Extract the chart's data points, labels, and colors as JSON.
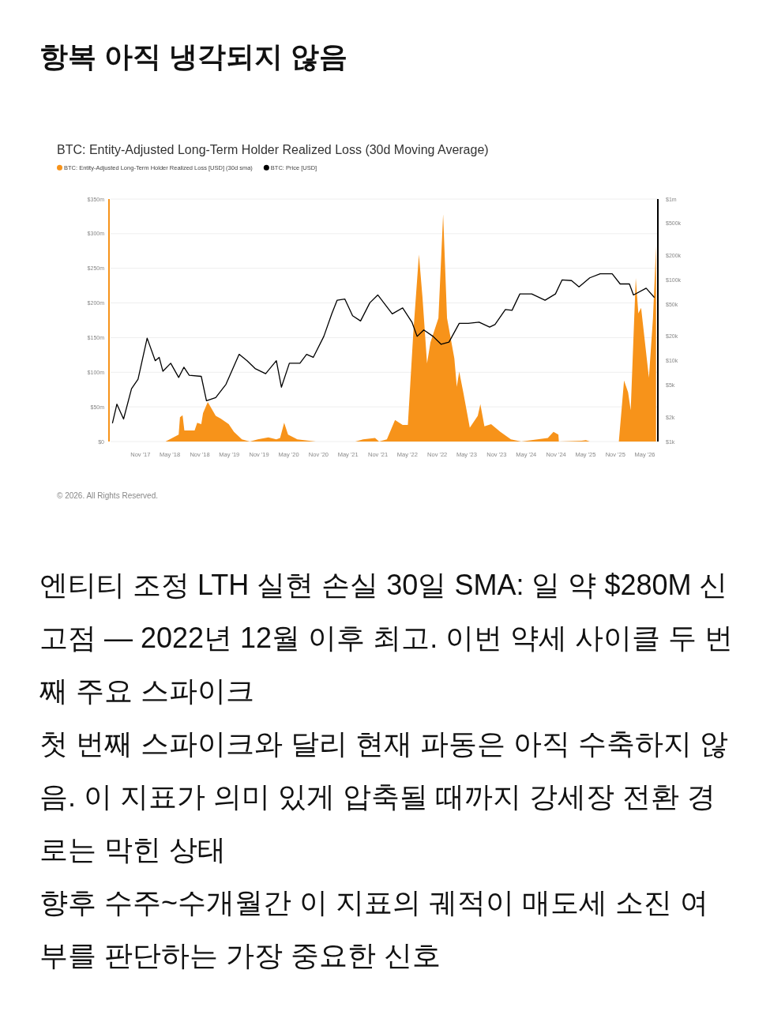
{
  "chart_data": {
    "type": "area",
    "title": "항복 아직 냉각되지 않음",
    "subtitle": "BTC: Entity-Adjusted Long-Term Holder Realized Loss (30d Moving Average)",
    "annotations": [
      "© 2026. All Rights Reserved.",
      "엔티티 조정 LTH 실현 손실 30일 SMA: 일 약 $280M 신고점 — 2022년 12월 이후 최고. 이번 약세 사이클 두 번째 주요 스파이크",
      "첫 번째 스파이크와 달리 현재 파동은 아직 수축하지 않음. 이 지표가 의미 있게 압축될 때까지 강세장 전환 경로는 막힌 상태",
      "향후 수주~수개월간 이 지표의 궤적이 매도세 소진 여부를 판단하는 가장 중요한 신호"
    ],
    "legend": "top left",
    "grid": "y",
    "log": "y2",
    "xlim": [
      "2017-05-01",
      "2026-07-20"
    ],
    "xticks": [
      {
        "value": "2017-11-01",
        "label": "Nov '17"
      },
      {
        "value": "2018-05-01",
        "label": "May '18"
      },
      {
        "value": "2018-11-01",
        "label": "Nov '18"
      },
      {
        "value": "2019-05-01",
        "label": "May '19"
      },
      {
        "value": "2019-11-01",
        "label": "Nov '19"
      },
      {
        "value": "2020-05-01",
        "label": "May '20"
      },
      {
        "value": "2020-11-01",
        "label": "Nov '20"
      },
      {
        "value": "2021-05-01",
        "label": "May '21"
      },
      {
        "value": "2021-11-01",
        "label": "Nov '21"
      },
      {
        "value": "2022-05-01",
        "label": "May '22"
      },
      {
        "value": "2022-11-01",
        "label": "Nov '22"
      },
      {
        "value": "2023-05-01",
        "label": "May '23"
      },
      {
        "value": "2023-11-01",
        "label": "Nov '23"
      },
      {
        "value": "2024-05-01",
        "label": "May '24"
      },
      {
        "value": "2024-11-01",
        "label": "Nov '24"
      },
      {
        "value": "2025-05-01",
        "label": "May '25"
      },
      {
        "value": "2025-11-01",
        "label": "Nov '25"
      },
      {
        "value": "2026-05-01",
        "label": "May '26"
      }
    ],
    "ylim": [
      0,
      350
    ],
    "yticks": [
      {
        "value": 0,
        "label": "$0"
      },
      {
        "value": 50,
        "label": "$50m"
      },
      {
        "value": 100,
        "label": "$100m"
      },
      {
        "value": 150,
        "label": "$150m"
      },
      {
        "value": 200,
        "label": "$200m"
      },
      {
        "value": 250,
        "label": "$250m"
      },
      {
        "value": 300,
        "label": "$300m"
      },
      {
        "value": 350,
        "label": "$350m"
      }
    ],
    "y2lim": [
      1000,
      1000000
    ],
    "y2ticks": [
      {
        "value": 1000,
        "label": "$1k"
      },
      {
        "value": 2000,
        "label": "$2k"
      },
      {
        "value": 5000,
        "label": "$5k"
      },
      {
        "value": 10000,
        "label": "$10k"
      },
      {
        "value": 20000,
        "label": "$20k"
      },
      {
        "value": 50000,
        "label": "$50k"
      },
      {
        "value": 100000,
        "label": "$100k"
      },
      {
        "value": 200000,
        "label": "$200k"
      },
      {
        "value": 500000,
        "label": "$500k"
      },
      {
        "value": 1000000,
        "label": "$1m"
      }
    ],
    "series": [
      {
        "name": "BTC: Entity-Adjusted Long-Term Holder Realized Loss [USD] (30d sma)",
        "color": "#f7931a",
        "x": [
          "2017-05-13",
          "2018-04-04",
          "2018-06-24",
          "2018-07-02",
          "2018-07-18",
          "2018-07-29",
          "2018-09-30",
          "2018-10-16",
          "2018-11-10",
          "2018-11-21",
          "2018-12-20",
          "2019-02-07",
          "2019-03-10",
          "2019-04-28",
          "2019-05-30",
          "2019-07-18",
          "2019-09-05",
          "2019-10-24",
          "2019-12-28",
          "2020-02-15",
          "2020-03-09",
          "2020-04-03",
          "2020-04-27",
          "2020-06-23",
          "2020-10-15",
          "2021-06-15",
          "2021-08-02",
          "2021-10-14",
          "2021-11-08",
          "2021-12-26",
          "2022-02-14",
          "2022-04-02",
          "2022-05-04",
          "2022-06-06",
          "2022-07-11",
          "2022-08-02",
          "2022-08-30",
          "2022-09-20",
          "2022-11-08",
          "2022-12-07",
          "2022-12-31",
          "2023-02-14",
          "2023-03-01",
          "2023-03-16",
          "2023-04-10",
          "2023-05-20",
          "2023-07-08",
          "2023-07-24",
          "2023-08-18",
          "2023-09-28",
          "2023-11-24",
          "2024-01-28",
          "2024-04-01",
          "2024-09-11",
          "2024-10-16",
          "2024-11-15",
          "2024-11-18",
          "2025-04-08",
          "2025-05-03",
          "2025-05-27",
          "2025-11-22",
          "2025-12-24",
          "2026-01-18",
          "2026-02-03",
          "2026-03-06",
          "2026-03-22",
          "2026-04-08",
          "2026-05-26",
          "2026-06-20",
          "2026-07-09"
        ],
        "values": [
          0,
          0,
          10,
          35,
          38,
          16,
          16,
          27,
          25,
          41,
          57,
          37,
          33,
          25,
          14,
          3,
          0,
          3,
          6,
          3,
          5,
          27,
          10,
          3,
          0,
          0,
          3,
          5,
          0,
          3,
          31,
          24,
          24,
          155,
          270,
          208,
          113,
          143,
          178,
          328,
          178,
          120,
          79,
          101,
          71,
          20,
          37,
          54,
          22,
          25,
          14,
          3,
          0,
          5,
          14,
          10,
          0,
          1,
          2,
          0,
          0,
          88,
          71,
          45,
          236,
          185,
          193,
          92,
          178,
          282
        ]
      },
      {
        "name": "BTC: Price [USD]",
        "color": "#000000",
        "type": "line",
        "axis": "y2",
        "x": [
          "2017-05-13",
          "2017-06-09",
          "2017-07-20",
          "2017-09-07",
          "2017-10-17",
          "2017-12-12",
          "2018-01-31",
          "2018-02-24",
          "2018-03-19",
          "2018-05-06",
          "2018-06-24",
          "2018-07-26",
          "2018-08-28",
          "2018-11-10",
          "2018-12-12",
          "2019-02-07",
          "2019-04-11",
          "2019-07-01",
          "2019-08-19",
          "2019-10-07",
          "2019-12-11",
          "2020-02-15",
          "2020-03-17",
          "2020-05-05",
          "2020-07-09",
          "2020-08-19",
          "2020-09-29",
          "2020-12-03",
          "2021-01-21",
          "2021-02-23",
          "2021-04-11",
          "2021-05-29",
          "2021-07-17",
          "2021-09-12",
          "2021-10-31",
          "2022-01-28",
          "2022-04-02",
          "2022-05-29",
          "2022-06-30",
          "2022-08-10",
          "2022-10-06",
          "2022-11-24",
          "2023-01-12",
          "2023-03-16",
          "2023-05-11",
          "2023-07-16",
          "2023-09-19",
          "2023-10-22",
          "2023-12-25",
          "2024-02-04",
          "2024-03-23",
          "2024-06-04",
          "2024-08-25",
          "2024-10-28",
          "2024-12-08",
          "2025-02-04",
          "2025-03-22",
          "2025-05-27",
          "2025-07-30",
          "2025-10-12",
          "2025-11-30",
          "2026-01-26",
          "2026-02-20",
          "2026-05-09",
          "2026-06-27"
        ],
        "values": [
          1700,
          2900,
          1900,
          4500,
          5900,
          19000,
          10000,
          11000,
          7400,
          9300,
          6200,
          8300,
          6600,
          6400,
          3200,
          3500,
          5100,
          12000,
          10000,
          8000,
          6900,
          10000,
          4700,
          9300,
          9300,
          12000,
          11000,
          20000,
          38000,
          56000,
          58000,
          36000,
          31000,
          52000,
          65000,
          38000,
          45000,
          30000,
          20000,
          24000,
          20000,
          16000,
          17000,
          29000,
          29000,
          30000,
          26000,
          28000,
          43000,
          42000,
          67000,
          67000,
          56000,
          67000,
          100000,
          98000,
          82000,
          106000,
          119000,
          119000,
          89000,
          89000,
          65000,
          79000,
          61000
        ]
      }
    ]
  }
}
